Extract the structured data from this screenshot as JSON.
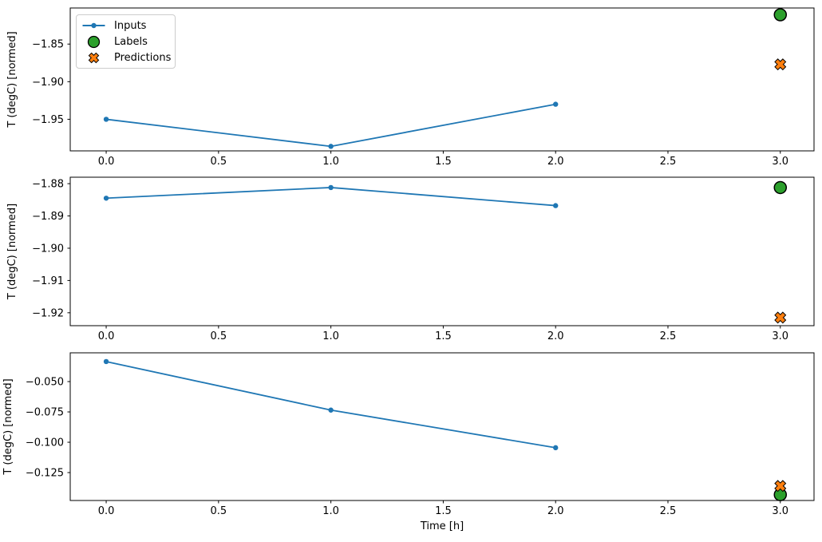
{
  "figure": {
    "background": "#ffffff",
    "text_color": "#000000",
    "legend": {
      "items": [
        {
          "label": "Inputs",
          "marker": "line-dot",
          "color": "#1f77b4",
          "edge": "#1f77b4"
        },
        {
          "label": "Labels",
          "marker": "circle",
          "color": "#2ca02c",
          "edge": "#000000"
        },
        {
          "label": "Predictions",
          "marker": "x",
          "color": "#ff7f0e",
          "edge": "#000000"
        }
      ]
    }
  },
  "chart_data": [
    {
      "type": "line",
      "title": "",
      "xlabel": "",
      "ylabel": "T (degC) [normed]",
      "xlim": [
        -0.16,
        3.15
      ],
      "ylim": [
        -1.992,
        -1.802
      ],
      "x_tick_values": [
        0,
        0.5,
        1,
        1.5,
        2,
        2.5,
        3
      ],
      "x_tick_labels": [
        "0.0",
        "0.5",
        "1.0",
        "1.5",
        "2.0",
        "2.5",
        "3.0"
      ],
      "y_tick_values": [
        -1.85,
        -1.9,
        -1.95
      ],
      "y_tick_labels": [
        "−1.85",
        "−1.90",
        "−1.95"
      ],
      "grid": false,
      "legend_position": "upper left",
      "series": [
        {
          "name": "Inputs",
          "kind": "line",
          "color": "#1f77b4",
          "x": [
            0,
            1,
            2
          ],
          "y": [
            -1.95,
            -1.986,
            -1.93
          ]
        },
        {
          "name": "Labels",
          "kind": "circle",
          "color": "#2ca02c",
          "edge": "#000000",
          "x": [
            3
          ],
          "y": [
            -1.811
          ]
        },
        {
          "name": "Predictions",
          "kind": "x",
          "color": "#ff7f0e",
          "edge": "#000000",
          "x": [
            3
          ],
          "y": [
            -1.877
          ]
        }
      ]
    },
    {
      "type": "line",
      "title": "",
      "xlabel": "",
      "ylabel": "T (degC) [normed]",
      "xlim": [
        -0.16,
        3.15
      ],
      "ylim": [
        -1.924,
        -1.878
      ],
      "x_tick_values": [
        0,
        0.5,
        1,
        1.5,
        2,
        2.5,
        3
      ],
      "x_tick_labels": [
        "0.0",
        "0.5",
        "1.0",
        "1.5",
        "2.0",
        "2.5",
        "3.0"
      ],
      "y_tick_values": [
        -1.88,
        -1.89,
        -1.9,
        -1.91,
        -1.92
      ],
      "y_tick_labels": [
        "−1.88",
        "−1.89",
        "−1.90",
        "−1.91",
        "−1.92"
      ],
      "grid": false,
      "series": [
        {
          "name": "Inputs",
          "kind": "line",
          "color": "#1f77b4",
          "x": [
            0,
            1,
            2
          ],
          "y": [
            -1.8845,
            -1.8812,
            -1.8868
          ]
        },
        {
          "name": "Labels",
          "kind": "circle",
          "color": "#2ca02c",
          "edge": "#000000",
          "x": [
            3
          ],
          "y": [
            -1.8812
          ]
        },
        {
          "name": "Predictions",
          "kind": "x",
          "color": "#ff7f0e",
          "edge": "#000000",
          "x": [
            3
          ],
          "y": [
            -1.9215
          ]
        }
      ]
    },
    {
      "type": "line",
      "title": "",
      "xlabel": "Time [h]",
      "ylabel": "T (degC) [normed]",
      "xlim": [
        -0.16,
        3.15
      ],
      "ylim": [
        -0.148,
        -0.0263
      ],
      "x_tick_values": [
        0,
        0.5,
        1,
        1.5,
        2,
        2.5,
        3
      ],
      "x_tick_labels": [
        "0.0",
        "0.5",
        "1.0",
        "1.5",
        "2.0",
        "2.5",
        "3.0"
      ],
      "y_tick_values": [
        -0.05,
        -0.075,
        -0.1,
        -0.125
      ],
      "y_tick_labels": [
        "−0.050",
        "−0.075",
        "−0.100",
        "−0.125"
      ],
      "grid": false,
      "series": [
        {
          "name": "Inputs",
          "kind": "line",
          "color": "#1f77b4",
          "x": [
            0,
            1,
            2
          ],
          "y": [
            -0.0335,
            -0.0735,
            -0.1045
          ]
        },
        {
          "name": "Labels",
          "kind": "circle",
          "color": "#2ca02c",
          "edge": "#000000",
          "x": [
            3
          ],
          "y": [
            -0.1432
          ]
        },
        {
          "name": "Predictions",
          "kind": "x",
          "color": "#ff7f0e",
          "edge": "#000000",
          "x": [
            3
          ],
          "y": [
            -0.136
          ]
        }
      ]
    }
  ]
}
